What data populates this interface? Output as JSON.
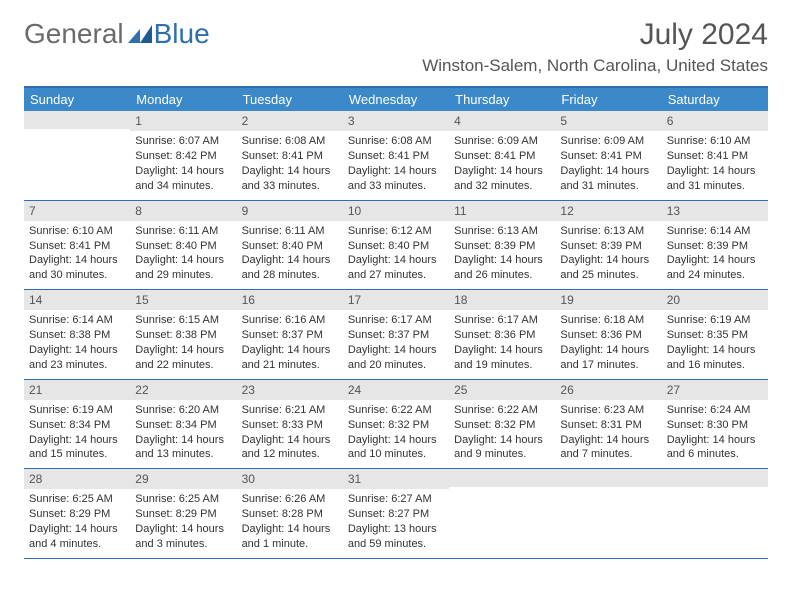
{
  "brand": {
    "part1": "General",
    "part2": "Blue"
  },
  "title": {
    "month": "July 2024",
    "location": "Winston-Salem, North Carolina, United States"
  },
  "colors": {
    "header_bg": "#3b89c9",
    "border": "#2f6fb0",
    "num_bg": "#e6e6e6"
  },
  "day_headers": [
    "Sunday",
    "Monday",
    "Tuesday",
    "Wednesday",
    "Thursday",
    "Friday",
    "Saturday"
  ],
  "weeks": [
    [
      {
        "n": "",
        "sunrise": "",
        "sunset": "",
        "daylight": ""
      },
      {
        "n": "1",
        "sunrise": "Sunrise: 6:07 AM",
        "sunset": "Sunset: 8:42 PM",
        "daylight": "Daylight: 14 hours and 34 minutes."
      },
      {
        "n": "2",
        "sunrise": "Sunrise: 6:08 AM",
        "sunset": "Sunset: 8:41 PM",
        "daylight": "Daylight: 14 hours and 33 minutes."
      },
      {
        "n": "3",
        "sunrise": "Sunrise: 6:08 AM",
        "sunset": "Sunset: 8:41 PM",
        "daylight": "Daylight: 14 hours and 33 minutes."
      },
      {
        "n": "4",
        "sunrise": "Sunrise: 6:09 AM",
        "sunset": "Sunset: 8:41 PM",
        "daylight": "Daylight: 14 hours and 32 minutes."
      },
      {
        "n": "5",
        "sunrise": "Sunrise: 6:09 AM",
        "sunset": "Sunset: 8:41 PM",
        "daylight": "Daylight: 14 hours and 31 minutes."
      },
      {
        "n": "6",
        "sunrise": "Sunrise: 6:10 AM",
        "sunset": "Sunset: 8:41 PM",
        "daylight": "Daylight: 14 hours and 31 minutes."
      }
    ],
    [
      {
        "n": "7",
        "sunrise": "Sunrise: 6:10 AM",
        "sunset": "Sunset: 8:41 PM",
        "daylight": "Daylight: 14 hours and 30 minutes."
      },
      {
        "n": "8",
        "sunrise": "Sunrise: 6:11 AM",
        "sunset": "Sunset: 8:40 PM",
        "daylight": "Daylight: 14 hours and 29 minutes."
      },
      {
        "n": "9",
        "sunrise": "Sunrise: 6:11 AM",
        "sunset": "Sunset: 8:40 PM",
        "daylight": "Daylight: 14 hours and 28 minutes."
      },
      {
        "n": "10",
        "sunrise": "Sunrise: 6:12 AM",
        "sunset": "Sunset: 8:40 PM",
        "daylight": "Daylight: 14 hours and 27 minutes."
      },
      {
        "n": "11",
        "sunrise": "Sunrise: 6:13 AM",
        "sunset": "Sunset: 8:39 PM",
        "daylight": "Daylight: 14 hours and 26 minutes."
      },
      {
        "n": "12",
        "sunrise": "Sunrise: 6:13 AM",
        "sunset": "Sunset: 8:39 PM",
        "daylight": "Daylight: 14 hours and 25 minutes."
      },
      {
        "n": "13",
        "sunrise": "Sunrise: 6:14 AM",
        "sunset": "Sunset: 8:39 PM",
        "daylight": "Daylight: 14 hours and 24 minutes."
      }
    ],
    [
      {
        "n": "14",
        "sunrise": "Sunrise: 6:14 AM",
        "sunset": "Sunset: 8:38 PM",
        "daylight": "Daylight: 14 hours and 23 minutes."
      },
      {
        "n": "15",
        "sunrise": "Sunrise: 6:15 AM",
        "sunset": "Sunset: 8:38 PM",
        "daylight": "Daylight: 14 hours and 22 minutes."
      },
      {
        "n": "16",
        "sunrise": "Sunrise: 6:16 AM",
        "sunset": "Sunset: 8:37 PM",
        "daylight": "Daylight: 14 hours and 21 minutes."
      },
      {
        "n": "17",
        "sunrise": "Sunrise: 6:17 AM",
        "sunset": "Sunset: 8:37 PM",
        "daylight": "Daylight: 14 hours and 20 minutes."
      },
      {
        "n": "18",
        "sunrise": "Sunrise: 6:17 AM",
        "sunset": "Sunset: 8:36 PM",
        "daylight": "Daylight: 14 hours and 19 minutes."
      },
      {
        "n": "19",
        "sunrise": "Sunrise: 6:18 AM",
        "sunset": "Sunset: 8:36 PM",
        "daylight": "Daylight: 14 hours and 17 minutes."
      },
      {
        "n": "20",
        "sunrise": "Sunrise: 6:19 AM",
        "sunset": "Sunset: 8:35 PM",
        "daylight": "Daylight: 14 hours and 16 minutes."
      }
    ],
    [
      {
        "n": "21",
        "sunrise": "Sunrise: 6:19 AM",
        "sunset": "Sunset: 8:34 PM",
        "daylight": "Daylight: 14 hours and 15 minutes."
      },
      {
        "n": "22",
        "sunrise": "Sunrise: 6:20 AM",
        "sunset": "Sunset: 8:34 PM",
        "daylight": "Daylight: 14 hours and 13 minutes."
      },
      {
        "n": "23",
        "sunrise": "Sunrise: 6:21 AM",
        "sunset": "Sunset: 8:33 PM",
        "daylight": "Daylight: 14 hours and 12 minutes."
      },
      {
        "n": "24",
        "sunrise": "Sunrise: 6:22 AM",
        "sunset": "Sunset: 8:32 PM",
        "daylight": "Daylight: 14 hours and 10 minutes."
      },
      {
        "n": "25",
        "sunrise": "Sunrise: 6:22 AM",
        "sunset": "Sunset: 8:32 PM",
        "daylight": "Daylight: 14 hours and 9 minutes."
      },
      {
        "n": "26",
        "sunrise": "Sunrise: 6:23 AM",
        "sunset": "Sunset: 8:31 PM",
        "daylight": "Daylight: 14 hours and 7 minutes."
      },
      {
        "n": "27",
        "sunrise": "Sunrise: 6:24 AM",
        "sunset": "Sunset: 8:30 PM",
        "daylight": "Daylight: 14 hours and 6 minutes."
      }
    ],
    [
      {
        "n": "28",
        "sunrise": "Sunrise: 6:25 AM",
        "sunset": "Sunset: 8:29 PM",
        "daylight": "Daylight: 14 hours and 4 minutes."
      },
      {
        "n": "29",
        "sunrise": "Sunrise: 6:25 AM",
        "sunset": "Sunset: 8:29 PM",
        "daylight": "Daylight: 14 hours and 3 minutes."
      },
      {
        "n": "30",
        "sunrise": "Sunrise: 6:26 AM",
        "sunset": "Sunset: 8:28 PM",
        "daylight": "Daylight: 14 hours and 1 minute."
      },
      {
        "n": "31",
        "sunrise": "Sunrise: 6:27 AM",
        "sunset": "Sunset: 8:27 PM",
        "daylight": "Daylight: 13 hours and 59 minutes."
      },
      {
        "n": "",
        "sunrise": "",
        "sunset": "",
        "daylight": ""
      },
      {
        "n": "",
        "sunrise": "",
        "sunset": "",
        "daylight": ""
      },
      {
        "n": "",
        "sunrise": "",
        "sunset": "",
        "daylight": ""
      }
    ]
  ]
}
